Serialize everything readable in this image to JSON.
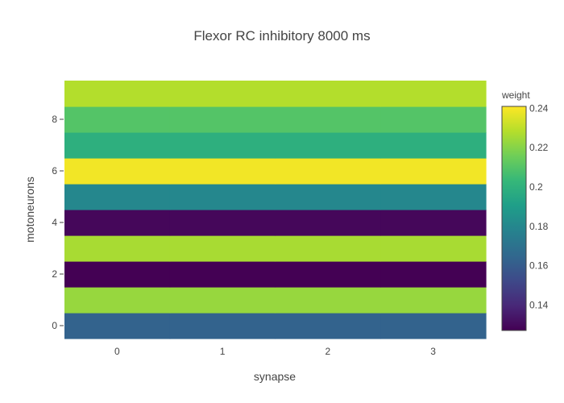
{
  "chart_data": {
    "type": "heatmap",
    "title": "Flexor RC inhibitory 8000 ms",
    "xlabel": "synapse",
    "ylabel": "motoneurons",
    "x": [
      0,
      1,
      2,
      3
    ],
    "y": [
      0,
      1,
      2,
      3,
      4,
      5,
      6,
      7,
      8,
      9
    ],
    "x_tick_labels": [
      "0",
      "1",
      "2",
      "3"
    ],
    "y_tick_labels": [
      "0",
      "2",
      "4",
      "6",
      "8"
    ],
    "y_tick_values": [
      0,
      2,
      4,
      6,
      8
    ],
    "xlim": [
      -0.5,
      3.5
    ],
    "ylim": [
      -0.5,
      9.5
    ],
    "z": [
      [
        0.163,
        0.163,
        0.163,
        0.163
      ],
      [
        0.223,
        0.223,
        0.223,
        0.223
      ],
      [
        0.127,
        0.127,
        0.127,
        0.127
      ],
      [
        0.226,
        0.226,
        0.226,
        0.226
      ],
      [
        0.129,
        0.129,
        0.129,
        0.129
      ],
      [
        0.18,
        0.18,
        0.18,
        0.18
      ],
      [
        0.239,
        0.239,
        0.239,
        0.239
      ],
      [
        0.199,
        0.199,
        0.199,
        0.199
      ],
      [
        0.21,
        0.21,
        0.21,
        0.21
      ],
      [
        0.228,
        0.228,
        0.228,
        0.228
      ]
    ],
    "colorscale": "viridis",
    "zmin": 0.127,
    "zmax": 0.241,
    "colorbar": {
      "title": "weight",
      "tick_values": [
        0.14,
        0.16,
        0.18,
        0.2,
        0.22,
        0.24
      ],
      "tick_labels": [
        "0.14",
        "0.16",
        "0.18",
        "0.2",
        "0.22",
        "0.24"
      ]
    },
    "grid": false
  }
}
